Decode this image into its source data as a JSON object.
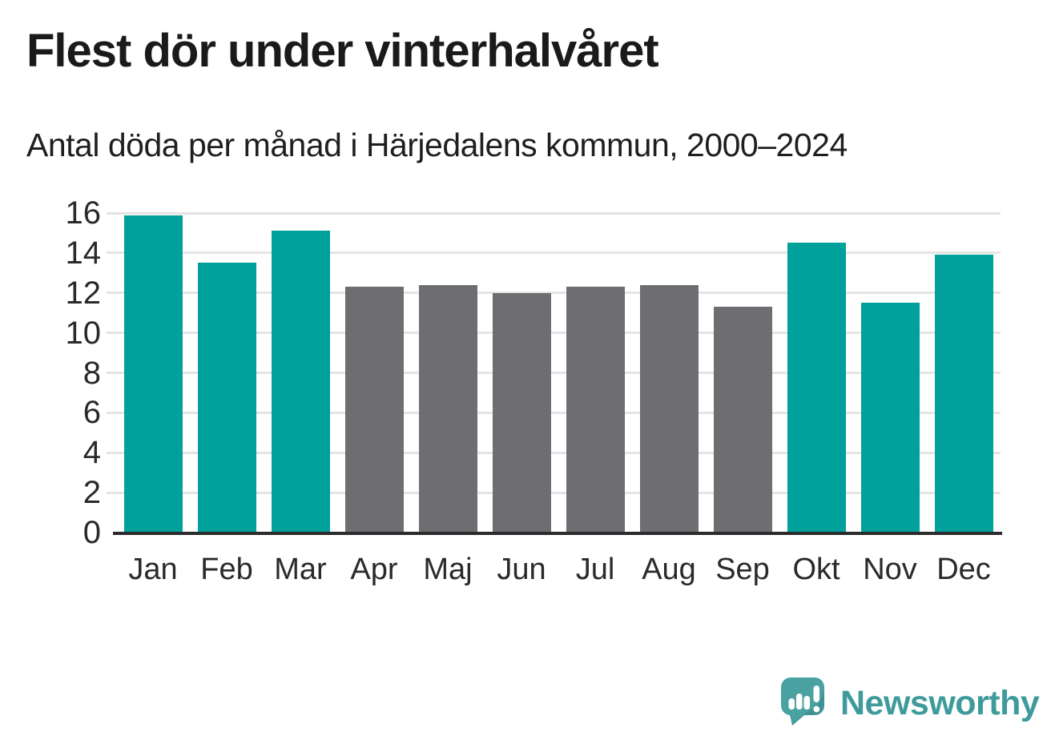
{
  "title": "Flest dör under vinterhalvåret",
  "subtitle": "Antal döda per månad i Härjedalens kommun, 2000–2024",
  "colors": {
    "highlight": "#00a19a",
    "muted": "#6d6d72",
    "gridline": "#e4e4e4",
    "axis_line": "#2b2b2b",
    "text": "#2a2a2a",
    "title_text": "#1a1a1a",
    "brand_teal": "#3f9b9b",
    "logo_bubble": "#4aa1a1",
    "logo_bubble_shade": "#3c8d8e"
  },
  "chart_data": {
    "type": "bar",
    "title": "Flest dör under vinterhalvåret",
    "subtitle": "Antal döda per månad i Härjedalens kommun, 2000–2024",
    "categories": [
      "Jan",
      "Feb",
      "Mar",
      "Apr",
      "Maj",
      "Jun",
      "Jul",
      "Aug",
      "Sep",
      "Okt",
      "Nov",
      "Dec"
    ],
    "values": [
      15.9,
      13.5,
      15.1,
      12.3,
      12.4,
      12.0,
      12.3,
      12.4,
      11.3,
      14.5,
      11.5,
      13.9
    ],
    "bar_color_keys": [
      "highlight",
      "highlight",
      "highlight",
      "muted",
      "muted",
      "muted",
      "muted",
      "muted",
      "muted",
      "highlight",
      "highlight",
      "highlight"
    ],
    "xlabel": "",
    "ylabel": "",
    "ylim": [
      0,
      16
    ],
    "yticks": [
      0,
      2,
      4,
      6,
      8,
      10,
      12,
      14,
      16
    ],
    "grid": true,
    "legend": false
  },
  "branding": {
    "logo_text": "Newsworthy",
    "logo_icon": "speech-bubble-bar-chart-exclamation"
  }
}
